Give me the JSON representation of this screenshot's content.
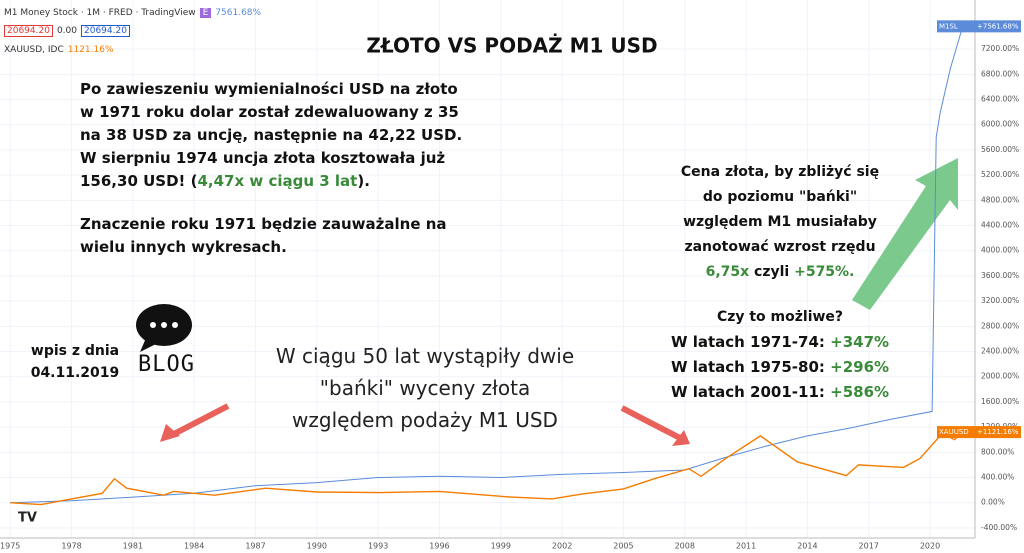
{
  "header": {
    "symbol": "M1 Money Stock · 1M · FRED · TradingView",
    "badge": "E",
    "change": "7561.68%",
    "box_red": "20694.20",
    "zero": "0.00",
    "box_blue": "20694.20",
    "second_symbol": "XAUUSD, IDC",
    "second_change": "1121.16%"
  },
  "chart_data": {
    "type": "line",
    "title": "ZŁOTO VS PODAŻ M1 USD",
    "xlim": [
      1974.5,
      2022.2
    ],
    "xticks": [
      1975,
      1978,
      1981,
      1984,
      1987,
      1990,
      1993,
      1996,
      1999,
      2002,
      2005,
      2008,
      2011,
      2014,
      2017,
      2020
    ],
    "ylim": [
      -560,
      7980
    ],
    "yticks": [
      {
        "value": -400,
        "label": "-400.00%"
      },
      {
        "value": 0,
        "label": "0.00%"
      },
      {
        "value": 400,
        "label": "400.00%"
      },
      {
        "value": 800,
        "label": "800.00%"
      },
      {
        "value": 1200,
        "label": "1200.00%"
      },
      {
        "value": 1600,
        "label": "1600.00%"
      },
      {
        "value": 2000,
        "label": "2000.00%"
      },
      {
        "value": 2400,
        "label": "2400.00%"
      },
      {
        "value": 2800,
        "label": "2800.00%"
      },
      {
        "value": 3200,
        "label": "3200.00%"
      },
      {
        "value": 3600,
        "label": "3600.00%"
      },
      {
        "value": 4000,
        "label": "4000.00%"
      },
      {
        "value": 4400,
        "label": "4400.00%"
      },
      {
        "value": 4800,
        "label": "4800.00%"
      },
      {
        "value": 5200,
        "label": "5200.00%"
      },
      {
        "value": 5600,
        "label": "5600.00%"
      },
      {
        "value": 6000,
        "label": "6000.00%"
      },
      {
        "value": 6400,
        "label": "6400.00%"
      },
      {
        "value": 6800,
        "label": "6800.00%"
      },
      {
        "value": 7200,
        "label": "7200.00%"
      }
    ],
    "series": [
      {
        "name": "M1SL",
        "color": "#5b8bd9",
        "last_label": "+7561.68%",
        "x": [
          1975,
          1978,
          1981,
          1984,
          1987,
          1990,
          1993,
          1996,
          1999,
          2002,
          2005,
          2008,
          2010,
          2012,
          2014,
          2016,
          2018,
          2020.1,
          2020.3,
          2020.5,
          2021,
          2021.6
        ],
        "values": [
          0,
          30,
          90,
          150,
          270,
          320,
          400,
          420,
          400,
          450,
          480,
          520,
          720,
          900,
          1060,
          1180,
          1320,
          1450,
          5800,
          6200,
          6900,
          7561.68
        ]
      },
      {
        "name": "XAUUSD",
        "color": "#f57c00",
        "last_label": "+1121.16%",
        "x": [
          1975,
          1976.5,
          1978,
          1979.5,
          1980.1,
          1980.7,
          1982.5,
          1983,
          1985,
          1987.5,
          1990,
          1993,
          1996,
          1999.5,
          2001.5,
          2003,
          2005,
          2006.5,
          2008.2,
          2008.8,
          2010,
          2011.7,
          2013.5,
          2015.9,
          2016.5,
          2018.7,
          2019.5,
          2020.6,
          2021.2,
          2021.6
        ],
        "values": [
          0,
          -30,
          60,
          150,
          380,
          230,
          120,
          180,
          120,
          230,
          170,
          160,
          180,
          90,
          60,
          140,
          220,
          380,
          540,
          420,
          700,
          1060,
          650,
          430,
          600,
          560,
          700,
          1100,
          1000,
          1121.16
        ]
      }
    ]
  },
  "annotations": {
    "intro": [
      "Po zawieszeniu wymienialności USD na złoto",
      "w 1971 roku dolar został zdewaluowany z 35",
      "na 38 USD za uncję, następnie na 42,22 USD.",
      "W sierpniu 1974 uncja złota kosztowała już"
    ],
    "intro_last": [
      "156,30 USD! (",
      "4,47x w ciągu 3 lat",
      ")."
    ],
    "note": [
      "Znaczenie roku 1971 będzie zauważalne na",
      "wielu innych wykresach."
    ],
    "right": [
      "Cena złota, by zbliżyć się",
      "do poziomu \"bańki\"",
      "względem M1 musiałaby",
      "zanotować wzrost rzędu"
    ],
    "right_last": [
      "6,75x",
      "czyli",
      "+575%."
    ],
    "question": "Czy to możliwe?",
    "periods": [
      [
        "W latach 1971-74:",
        "+347%"
      ],
      [
        "W latach 1975-80:",
        "+296%"
      ],
      [
        "W latach 2001-11:",
        "+586%"
      ]
    ],
    "bubbles": [
      "W ciągu 50 lat wystąpiły dwie",
      "\"bańki\" wyceny złota",
      "względem podaży M1 USD"
    ],
    "post": [
      "wpis z dnia",
      "04.11.2019"
    ],
    "blog": "BLOG"
  }
}
